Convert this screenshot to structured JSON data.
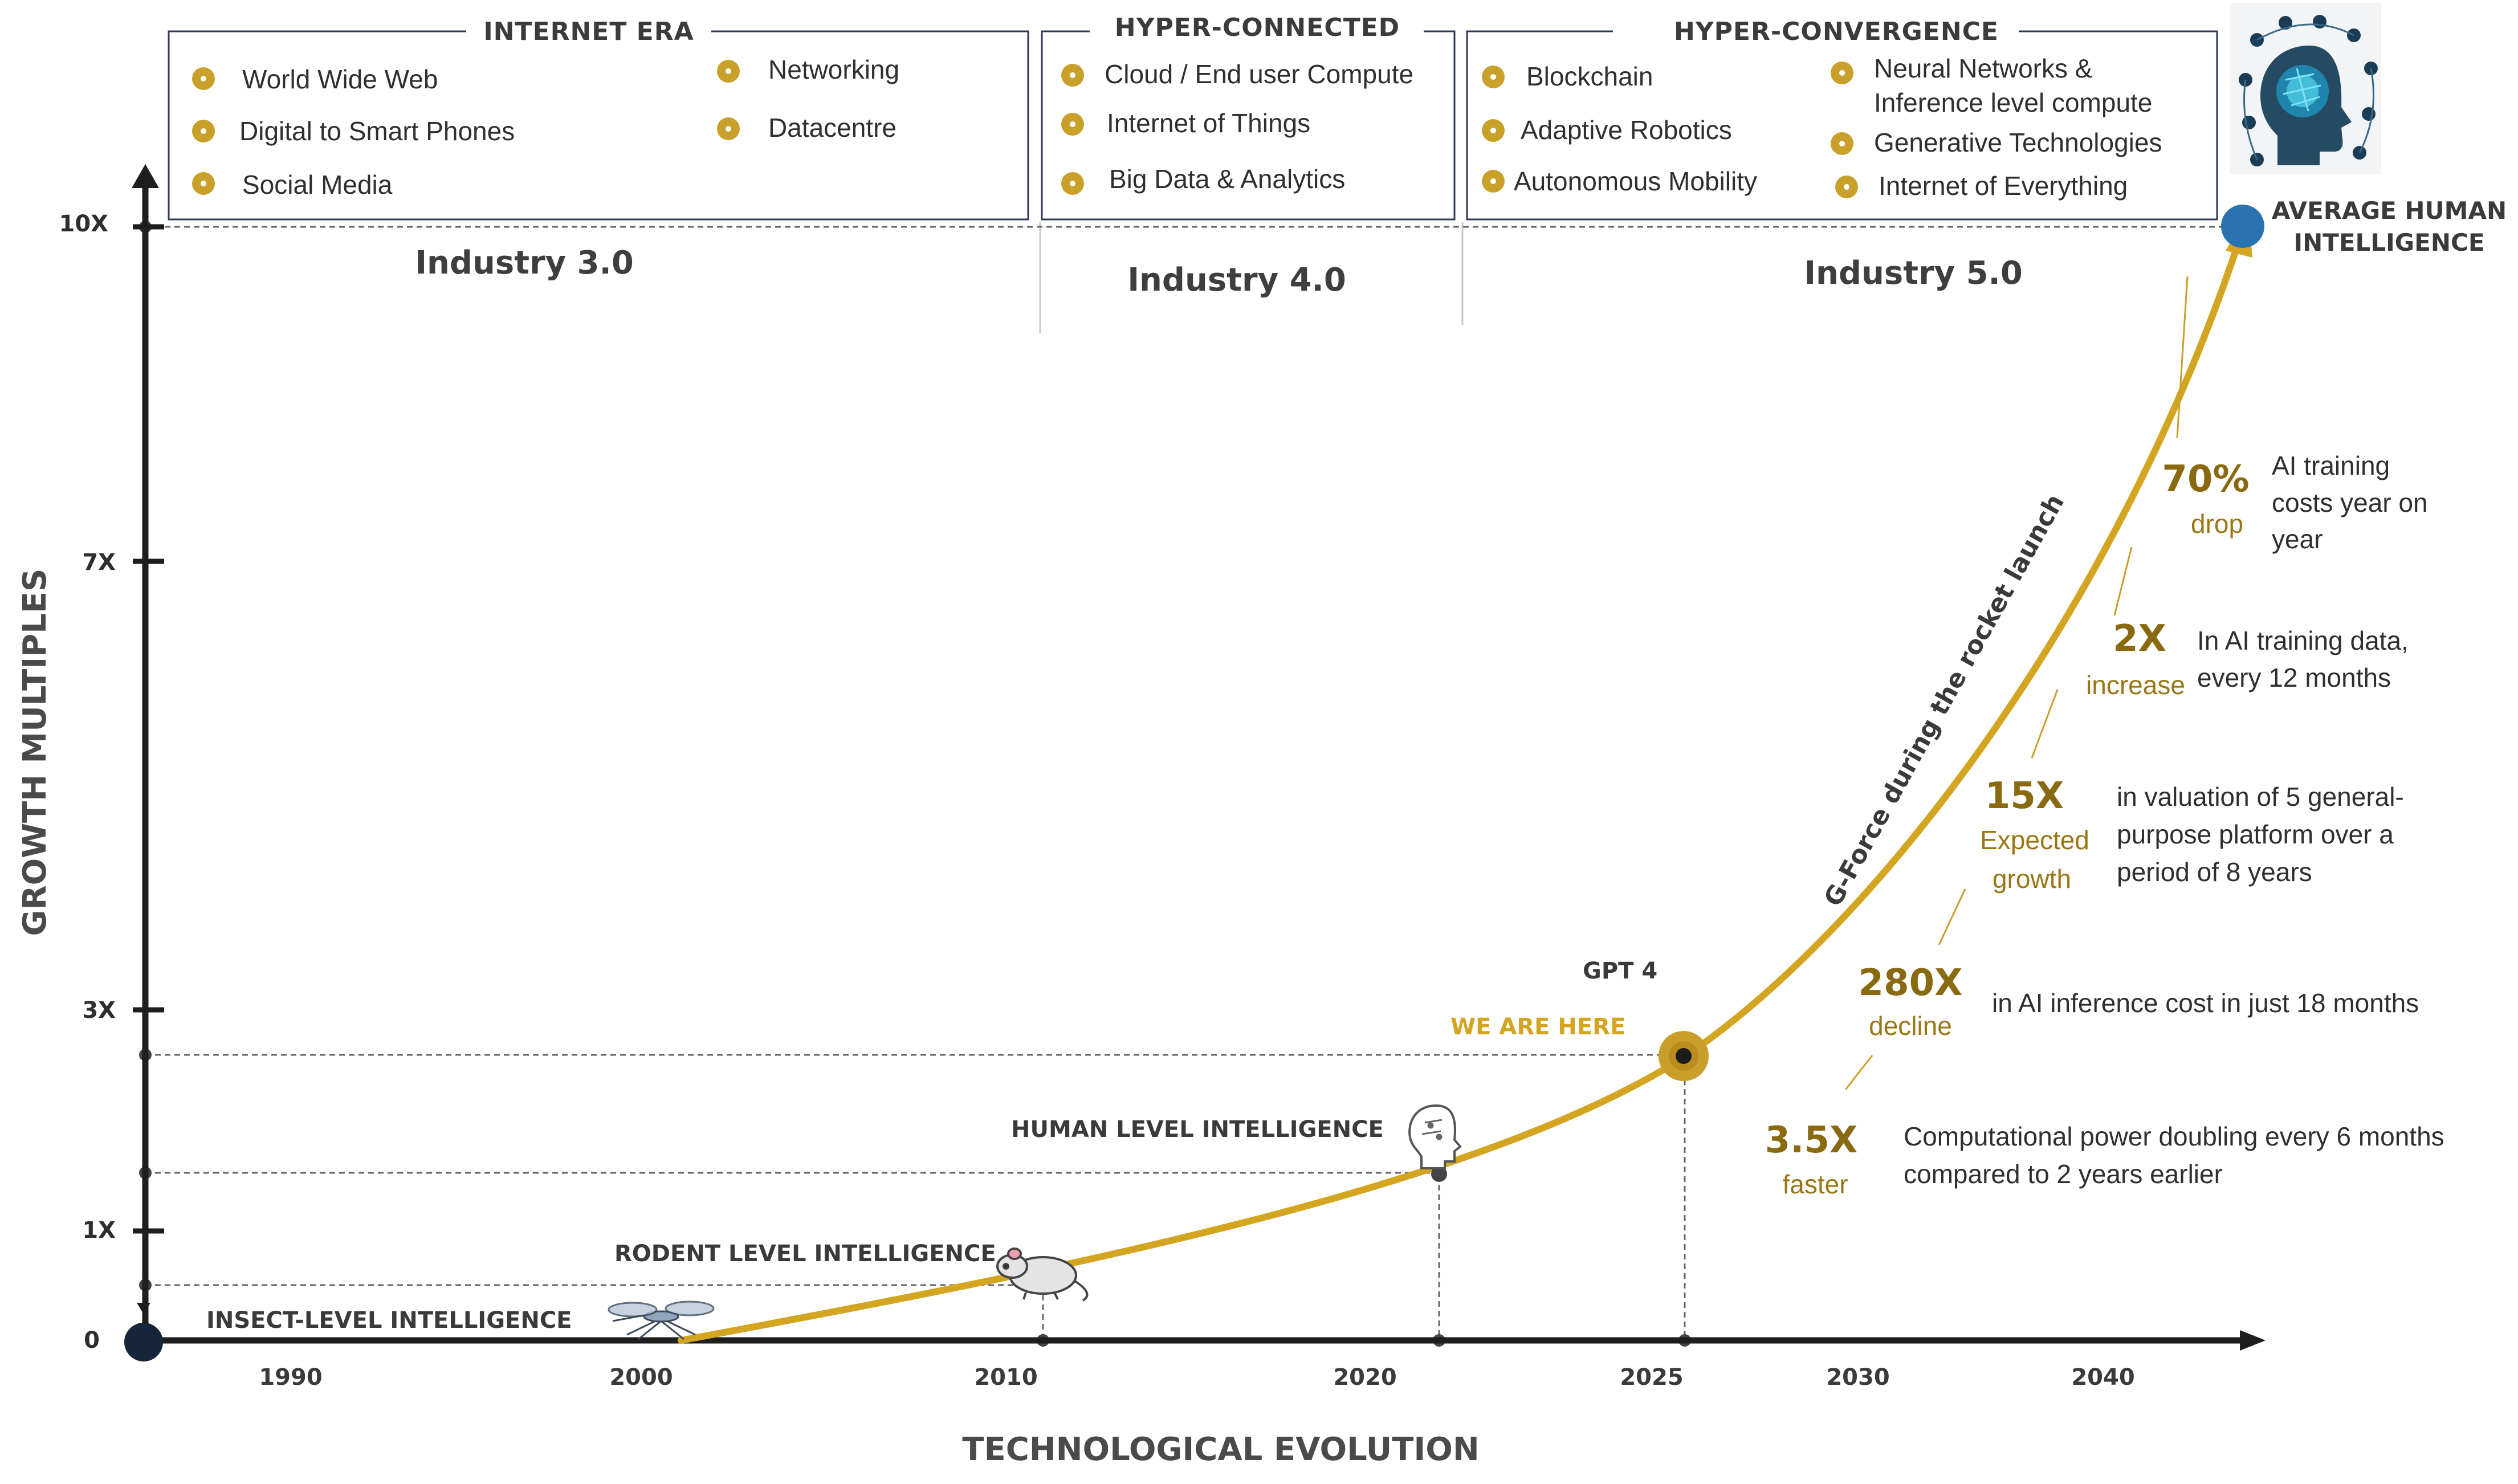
{
  "eras": [
    {
      "title": "INTERNET ERA",
      "items": [
        "World Wide Web",
        "Digital to Smart Phones",
        "Social Media",
        "Networking",
        "Datacentre"
      ]
    },
    {
      "title": "HYPER-CONNECTED",
      "items": [
        "Cloud / End user Compute",
        "Internet of Things",
        "Big Data & Analytics"
      ]
    },
    {
      "title": "HYPER-CONVERGENCE",
      "items": [
        "Blockchain",
        "Adaptive Robotics",
        "Autonomous Mobility",
        "Neural Networks &",
        "Inference level compute",
        "Generative Technologies",
        "Internet of Everything"
      ]
    }
  ],
  "industries": [
    "Industry 3.0",
    "Industry 4.0",
    "Industry 5.0"
  ],
  "axes": {
    "y_label": "GROWTH MULTIPLES",
    "x_label": "TECHNOLOGICAL EVOLUTION",
    "y_ticks": [
      "0",
      "1X",
      "3X",
      "7X",
      "10X"
    ],
    "x_ticks": [
      "1990",
      "2000",
      "2010",
      "2020",
      "2025",
      "2030",
      "2040"
    ]
  },
  "milestones": {
    "insect": "INSECT-LEVEL INTELLIGENCE",
    "rodent": "RODENT LEVEL INTELLIGENCE",
    "human": "HUMAN LEVEL INTELLIGENCE",
    "gpt": "GPT 4",
    "we_are_here": "WE ARE HERE",
    "avg_line1": "AVERAGE HUMAN",
    "avg_line2": "INTELLIGENCE"
  },
  "curve_label": "G-Force during the rocket launch",
  "stats": [
    {
      "big": "70%",
      "sub1": "drop",
      "desc": [
        "AI training",
        "costs year on",
        "year"
      ]
    },
    {
      "big": "2X",
      "sub1": "increase",
      "desc": [
        "In AI training data,",
        "every 12 months"
      ]
    },
    {
      "big": "15X",
      "sub1": "Expected",
      "sub2": "growth",
      "desc": [
        "in valuation of 5 general-",
        "purpose platform over a",
        "period of 8 years"
      ]
    },
    {
      "big": "280X",
      "sub1": "decline",
      "desc": [
        "in AI inference cost in just 18 months"
      ]
    },
    {
      "big": "3.5X",
      "sub1": "faster",
      "desc": [
        "Computational power doubling every 6 months",
        "compared to 2 years earlier"
      ]
    }
  ],
  "icons": [
    "mosquito-icon",
    "mouse-icon",
    "brain-head-icon",
    "ai-brain-network-icon"
  ],
  "colors": {
    "accent": "#d4a520",
    "stat": "#8a6a10",
    "axis": "#1e1e1e",
    "dot": "#2a73b0"
  }
}
